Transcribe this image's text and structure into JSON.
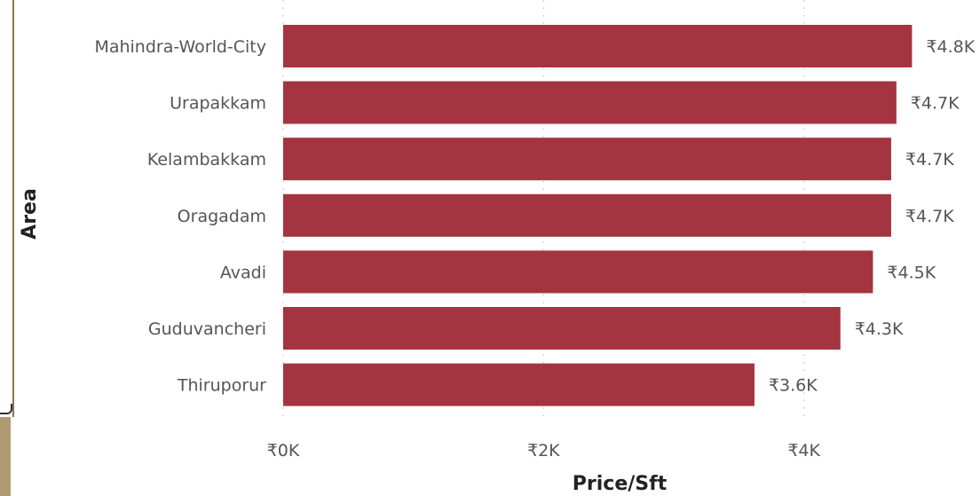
{
  "colors": {
    "bar": "#a4343f",
    "text": "#555555",
    "title": "#222222"
  },
  "chart_data": {
    "type": "bar",
    "orientation": "horizontal",
    "categories": [
      "Mahindra-World-City",
      "Urapakkam",
      "Kelambakkam",
      "Oragadam",
      "Avadi",
      "Guduvancheri",
      "Thiruporur"
    ],
    "values": [
      4830,
      4710,
      4670,
      4670,
      4530,
      4280,
      3620
    ],
    "value_labels": [
      "₹4.8K",
      "₹4.7K",
      "₹4.7K",
      "₹4.7K",
      "₹4.5K",
      "₹4.3K",
      "₹3.6K"
    ],
    "xlabel": "Price/Sft",
    "ylabel": "Area",
    "xlim": [
      0,
      5250
    ],
    "x_ticks": [
      0,
      2000,
      4000
    ],
    "x_tick_labels": [
      "₹0K",
      "₹2K",
      "₹4K"
    ],
    "grid": true,
    "legend": "none"
  }
}
